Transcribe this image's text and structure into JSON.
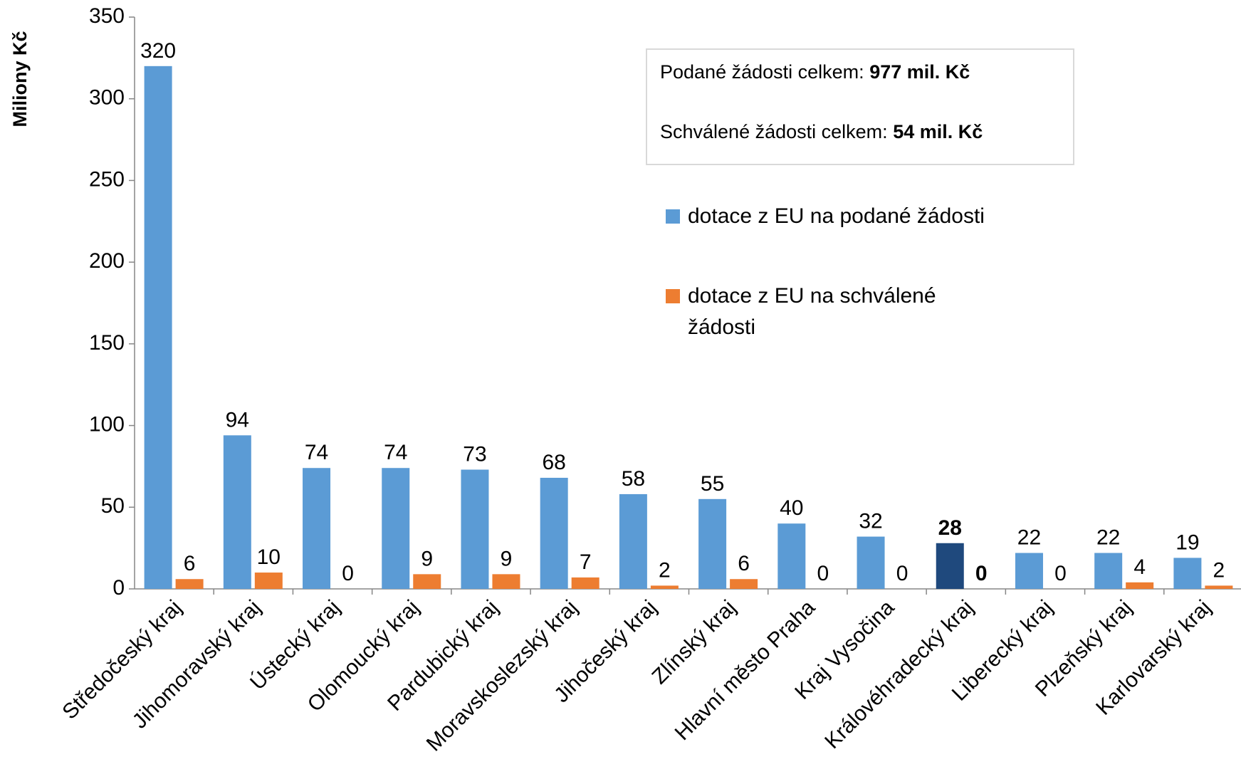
{
  "chart_data": {
    "type": "bar",
    "ylabel": "Miliony Kč",
    "categories": [
      "Středočeský kraj",
      "Jihomoravský kraj",
      "Ústecký kraj",
      "Olomoucký kraj",
      "Pardubický kraj",
      "Moravskoslezský kraj",
      "Jihočeský kraj",
      "Zlínský kraj",
      "Hlavní město Praha",
      "Kraj Vysočina",
      "Královéhradecký kraj",
      "Liberecký kraj",
      "Plzeňský kraj",
      "Karlovarský kraj"
    ],
    "series": [
      {
        "name": "dotace z EU na podané žádosti",
        "color": "#5b9bd5",
        "colors": [
          "#5b9bd5",
          "#5b9bd5",
          "#5b9bd5",
          "#5b9bd5",
          "#5b9bd5",
          "#5b9bd5",
          "#5b9bd5",
          "#5b9bd5",
          "#5b9bd5",
          "#5b9bd5",
          "#1f497d",
          "#5b9bd5",
          "#5b9bd5",
          "#5b9bd5"
        ],
        "values": [
          320,
          94,
          74,
          74,
          73,
          68,
          58,
          55,
          40,
          32,
          28,
          22,
          22,
          19
        ]
      },
      {
        "name": "dotace z EU na schválené žádosti",
        "color": "#ed7d31",
        "values": [
          6,
          10,
          0,
          9,
          9,
          7,
          2,
          6,
          0,
          0,
          0,
          0,
          4,
          2
        ]
      }
    ],
    "bold_categories": [
      false,
      false,
      false,
      false,
      false,
      false,
      false,
      false,
      false,
      false,
      true,
      false,
      false,
      false
    ],
    "ylim": [
      0,
      350
    ],
    "yticks": [
      0,
      50,
      100,
      150,
      200,
      250,
      300,
      350
    ],
    "annotations": [
      {
        "text": "Podané žádosti celkem:",
        "bold": "977 mil. Kč"
      },
      {
        "text": "Schválené žádosti celkem:",
        "bold": "54 mil. Kč"
      }
    ]
  }
}
